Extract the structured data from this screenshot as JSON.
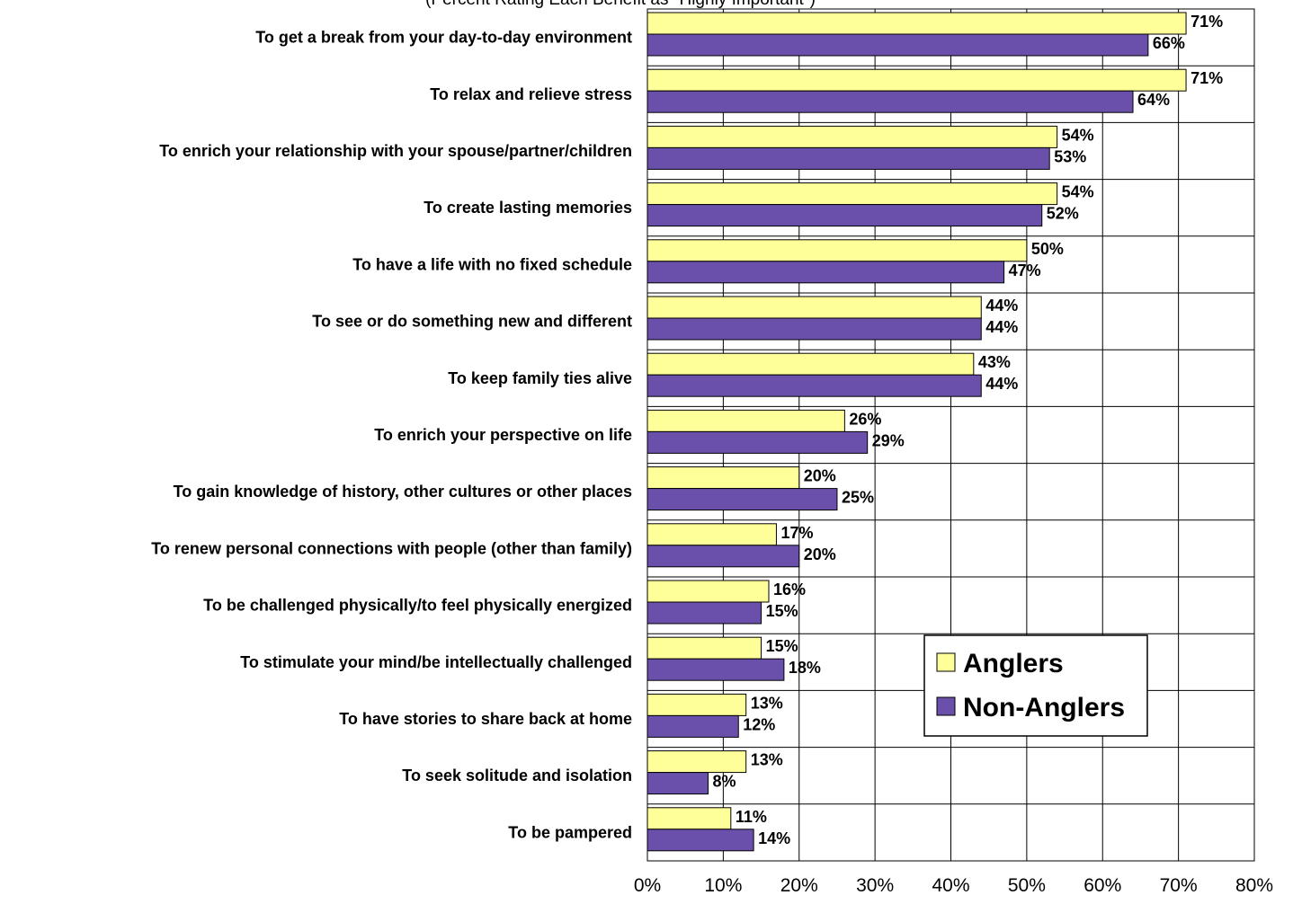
{
  "chart_data": {
    "type": "bar",
    "orientation": "horizontal",
    "subtitle": "(Percent Rating Each Benefit as \"Highly Important\")",
    "categories": [
      "To get a break from your day-to-day environment",
      "To relax and relieve stress",
      "To enrich your relationship with your spouse/partner/children",
      "To create lasting memories",
      "To have a life with no fixed schedule",
      "To see or do something new and different",
      "To keep family ties alive",
      "To enrich your perspective on life",
      "To gain knowledge of history, other cultures or other places",
      "To renew personal connections with people (other than family)",
      "To be challenged physically/to feel physically energized",
      "To stimulate your mind/be intellectually challenged",
      "To have stories to share back at home",
      "To seek solitude and isolation",
      "To be pampered"
    ],
    "series": [
      {
        "name": "Anglers",
        "color": "#FFFF99",
        "values": [
          71,
          71,
          54,
          54,
          50,
          44,
          43,
          26,
          20,
          17,
          16,
          15,
          13,
          13,
          11
        ]
      },
      {
        "name": "Non-Anglers",
        "color": "#6A50AA",
        "values": [
          66,
          64,
          53,
          52,
          47,
          44,
          44,
          29,
          25,
          20,
          15,
          18,
          12,
          8,
          14
        ]
      }
    ],
    "xlim": [
      0,
      80
    ],
    "xticks": [
      "0%",
      "10%",
      "20%",
      "30%",
      "40%",
      "50%",
      "60%",
      "70%",
      "80%"
    ],
    "value_suffix": "%",
    "grid": true,
    "legend_position": "lower-right"
  }
}
